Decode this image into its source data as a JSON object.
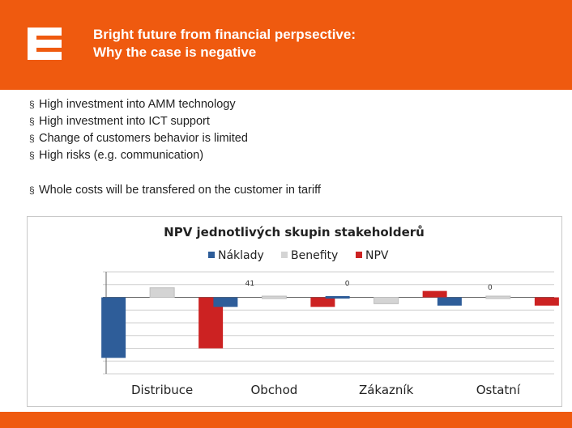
{
  "header": {
    "title_line1": "Bright future from financial perpsective:",
    "title_line2": "Why the case is negative",
    "logo_icon": "cez-e-logo-icon",
    "brand_color": "#ef5a0f"
  },
  "bullets": [
    "High investment into AMM technology",
    "High investment into ICT support",
    "Change of customers behavior is limited",
    "High risks (e.g. communication)"
  ],
  "bullet_extra": "Whole costs will be transfered on the customer in tariff",
  "chart_data": {
    "type": "bar",
    "title": "NPV jednotlivých skupin stakeholderů",
    "categories": [
      "Distribuce",
      "Obchod",
      "Zákazník",
      "Ostatní"
    ],
    "series": [
      {
        "name": "Náklady",
        "color": "#2e5d99",
        "values": [
          -95,
          -15,
          0,
          -13
        ]
      },
      {
        "name": "Benefity",
        "color": "#d4d4d4",
        "values": [
          15,
          0,
          -10,
          0
        ]
      },
      {
        "name": "NPV",
        "color": "#cc2222",
        "values": [
          -80,
          -15,
          10,
          -13
        ]
      }
    ],
    "data_labels": [
      "41",
      "0",
      "0"
    ],
    "xlabel": "",
    "ylabel": "",
    "ylim": [
      -120,
      40
    ],
    "legend_position": "top"
  }
}
